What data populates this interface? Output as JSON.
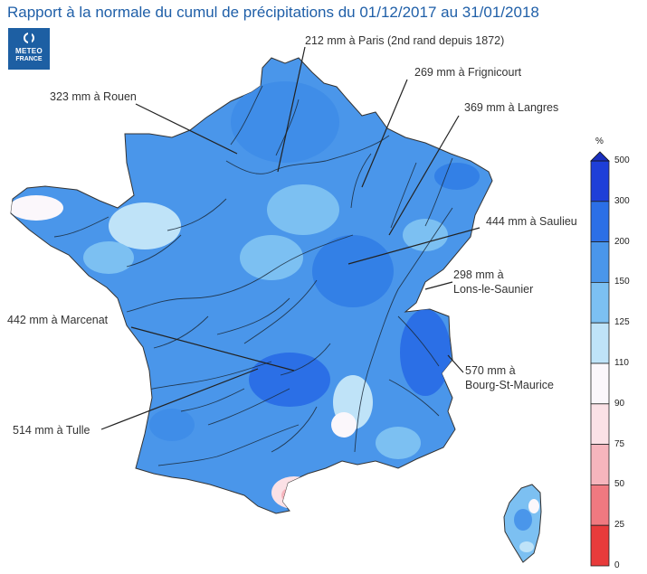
{
  "title": "Rapport à la normale du cumul de précipitations du 01/12/2017 au 31/01/2018",
  "logo": {
    "line1": "METEO",
    "line2": "FRANCE"
  },
  "annotations": [
    {
      "id": "paris",
      "text": "212 mm à Paris (2nd rand depuis 1872)"
    },
    {
      "id": "frignicourt",
      "text": "269 mm à Frignicourt"
    },
    {
      "id": "rouen",
      "text": "323 mm à Rouen"
    },
    {
      "id": "langres",
      "text": "369 mm à Langres"
    },
    {
      "id": "saulieu",
      "text": "444 mm à Saulieu"
    },
    {
      "id": "lons",
      "text": "298 mm à\nLons-le-Saunier"
    },
    {
      "id": "marcenat",
      "text": "442 mm à Marcenat"
    },
    {
      "id": "bourg",
      "text": "570 mm à\nBourg-St-Maurice"
    },
    {
      "id": "tulle",
      "text": "514 mm à Tulle"
    }
  ],
  "legend": {
    "unit": "%",
    "ticks": [
      "500",
      "300",
      "200",
      "150",
      "125",
      "110",
      "90",
      "75",
      "50",
      "25",
      "0"
    ],
    "colors": [
      "#1e3fd8",
      "#2b6fe6",
      "#4a96ea",
      "#7cc0f2",
      "#bfe3f8",
      "#fbf7fb",
      "#fbe1e6",
      "#f6b5bd",
      "#f07980",
      "#e83b3b"
    ]
  }
}
